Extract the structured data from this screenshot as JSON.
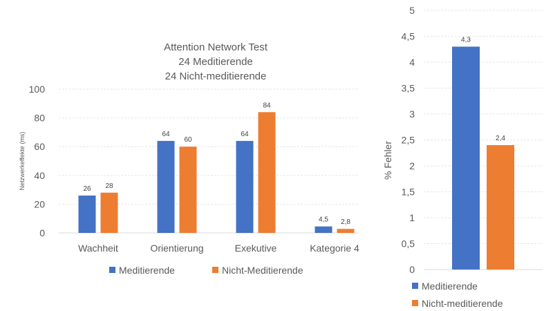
{
  "chart_data": [
    {
      "type": "bar",
      "title_lines": [
        "Attention Network Test",
        "24 Meditierende",
        "24 Nicht-meditierende"
      ],
      "xlabel": "",
      "ylabel": "Netzwerkeffekte (ms)",
      "ylim": [
        0,
        100
      ],
      "yticks": [
        "0",
        "20",
        "40",
        "60",
        "80",
        "100"
      ],
      "categories": [
        "Wachheit",
        "Orientierung",
        "Exekutive",
        "Kategorie 4"
      ],
      "series": [
        {
          "name": "Meditierende",
          "color": "#4472C4",
          "values": [
            26,
            64,
            64,
            4.5
          ],
          "labels": [
            "26",
            "64",
            "64",
            "4,5"
          ]
        },
        {
          "name": "Nicht-Meditierende",
          "color": "#ED7D31",
          "values": [
            28,
            60,
            84,
            2.8
          ],
          "labels": [
            "28",
            "60",
            "84",
            "2,8"
          ]
        }
      ],
      "grid": true,
      "legend_position": "bottom"
    },
    {
      "type": "bar",
      "title_lines": [],
      "xlabel": "",
      "ylabel": "% Fehler",
      "ylim": [
        0,
        5
      ],
      "yticks": [
        "0",
        "0,5",
        "1",
        "1,5",
        "2",
        "2,5",
        "3",
        "3,5",
        "4",
        "4,5",
        "5"
      ],
      "categories": [
        ""
      ],
      "series": [
        {
          "name": "Meditierende",
          "color": "#4472C4",
          "values": [
            4.3
          ],
          "labels": [
            "4,3"
          ]
        },
        {
          "name": "Nicht-meditierende",
          "color": "#ED7D31",
          "values": [
            2.4
          ],
          "labels": [
            "2,4"
          ]
        }
      ],
      "grid": true,
      "legend_position": "bottom"
    }
  ]
}
